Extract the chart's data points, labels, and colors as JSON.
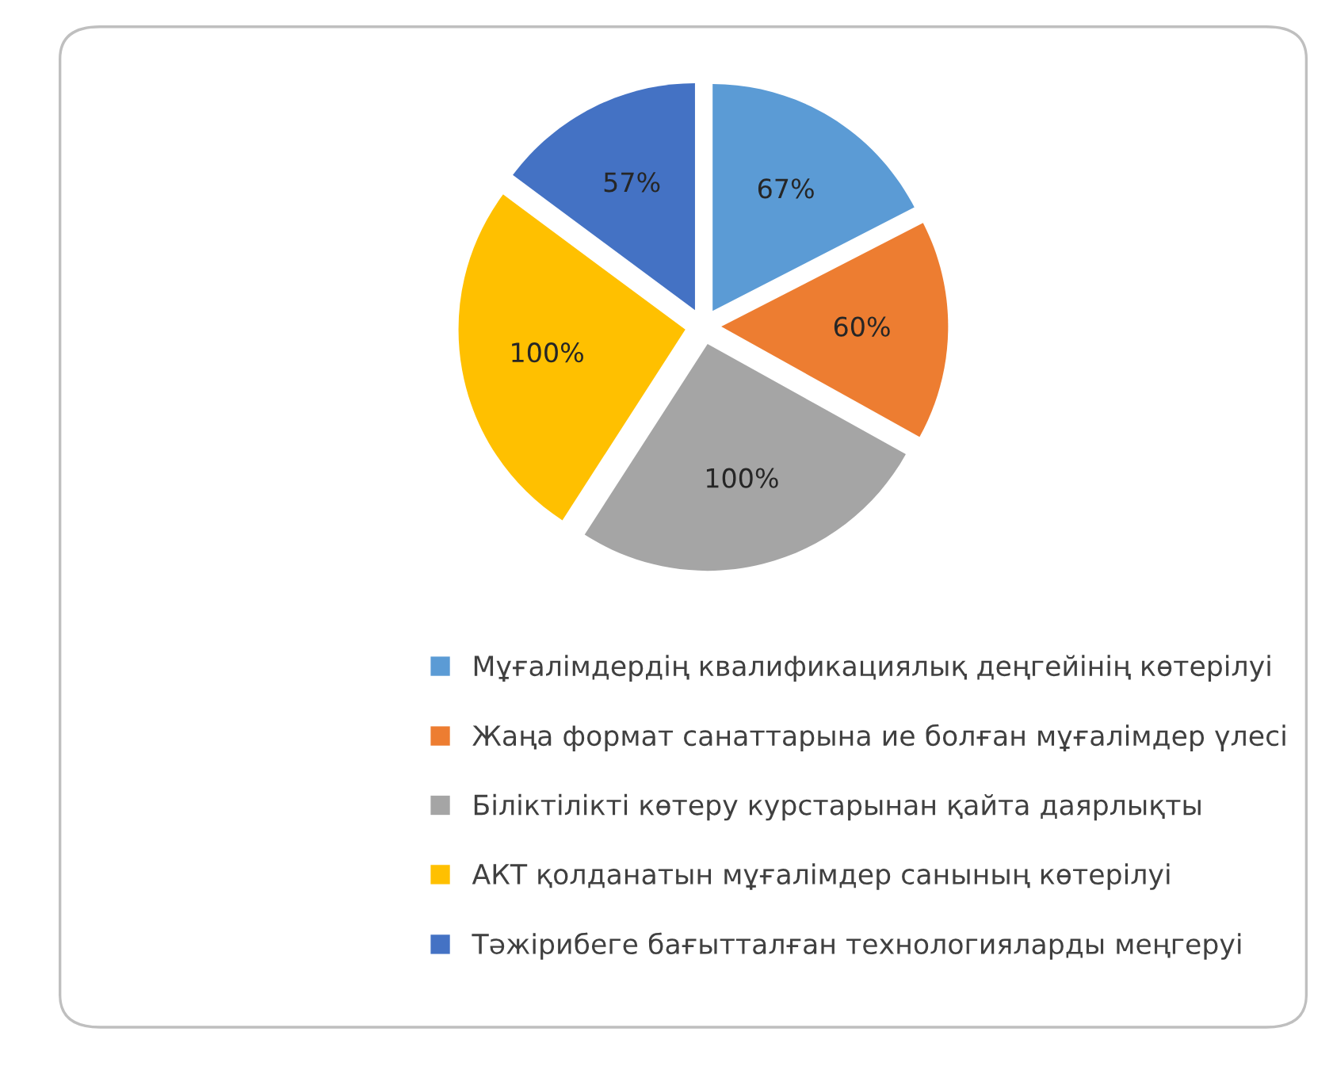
{
  "chart_data": {
    "type": "pie",
    "categories": [
      "Мұғалімдердің квалификациялық деңгейінің көтерілуі",
      "Жаңа формат санаттарына ие болған мұғалімдер үлесі",
      "Біліктілікті көтеру курстарынан қайта даярлықты",
      "АКТ қолданатын мұғалімдер санының көтерілуі",
      "Тәжірибеге бағытталған технологияларды меңгеруі"
    ],
    "values": [
      67,
      60,
      100,
      100,
      57
    ],
    "value_labels": [
      "67%",
      "60%",
      "100%",
      "100%",
      "57%"
    ],
    "colors": [
      "#5b9bd5",
      "#ed7d31",
      "#a5a5a5",
      "#ffc000",
      "#4472c4"
    ],
    "legend": "bottom"
  }
}
